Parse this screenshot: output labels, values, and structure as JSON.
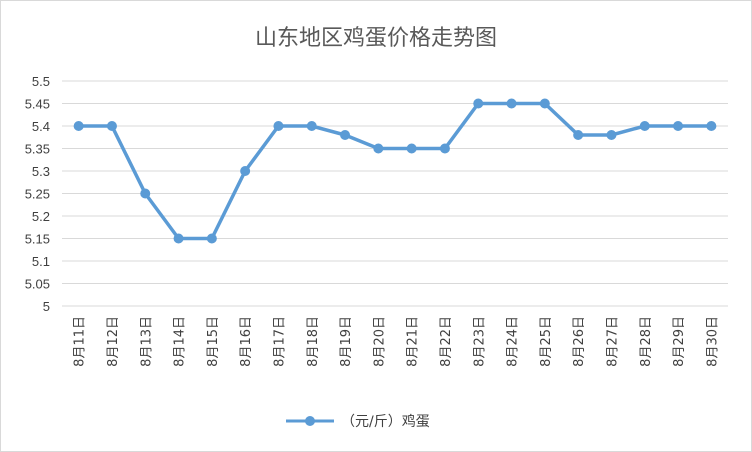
{
  "chart_data": {
    "type": "line",
    "title": "山东地区鸡蛋价格走势图",
    "categories": [
      "8月11日",
      "8月12日",
      "8月13日",
      "8月14日",
      "8月15日",
      "8月16日",
      "8月17日",
      "8月18日",
      "8月19日",
      "8月20日",
      "8月21日",
      "8月22日",
      "8月23日",
      "8月24日",
      "8月25日",
      "8月26日",
      "8月27日",
      "8月28日",
      "8月29日",
      "8月30日"
    ],
    "series": [
      {
        "name": "（元/斤）鸡蛋",
        "values": [
          5.4,
          5.4,
          5.25,
          5.15,
          5.15,
          5.3,
          5.4,
          5.4,
          5.38,
          5.35,
          5.35,
          5.35,
          5.45,
          5.45,
          5.45,
          5.38,
          5.38,
          5.4,
          5.4,
          5.4
        ]
      }
    ],
    "yticks": [
      "5",
      "5.05",
      "5.1",
      "5.15",
      "5.2",
      "5.25",
      "5.3",
      "5.35",
      "5.4",
      "5.45",
      "5.5"
    ],
    "ylim": [
      5,
      5.5
    ],
    "grid": true,
    "legend_position": "bottom",
    "colors": {
      "series": "#5b9bd5",
      "grid": "#d9d9d9",
      "text": "#404040"
    }
  }
}
